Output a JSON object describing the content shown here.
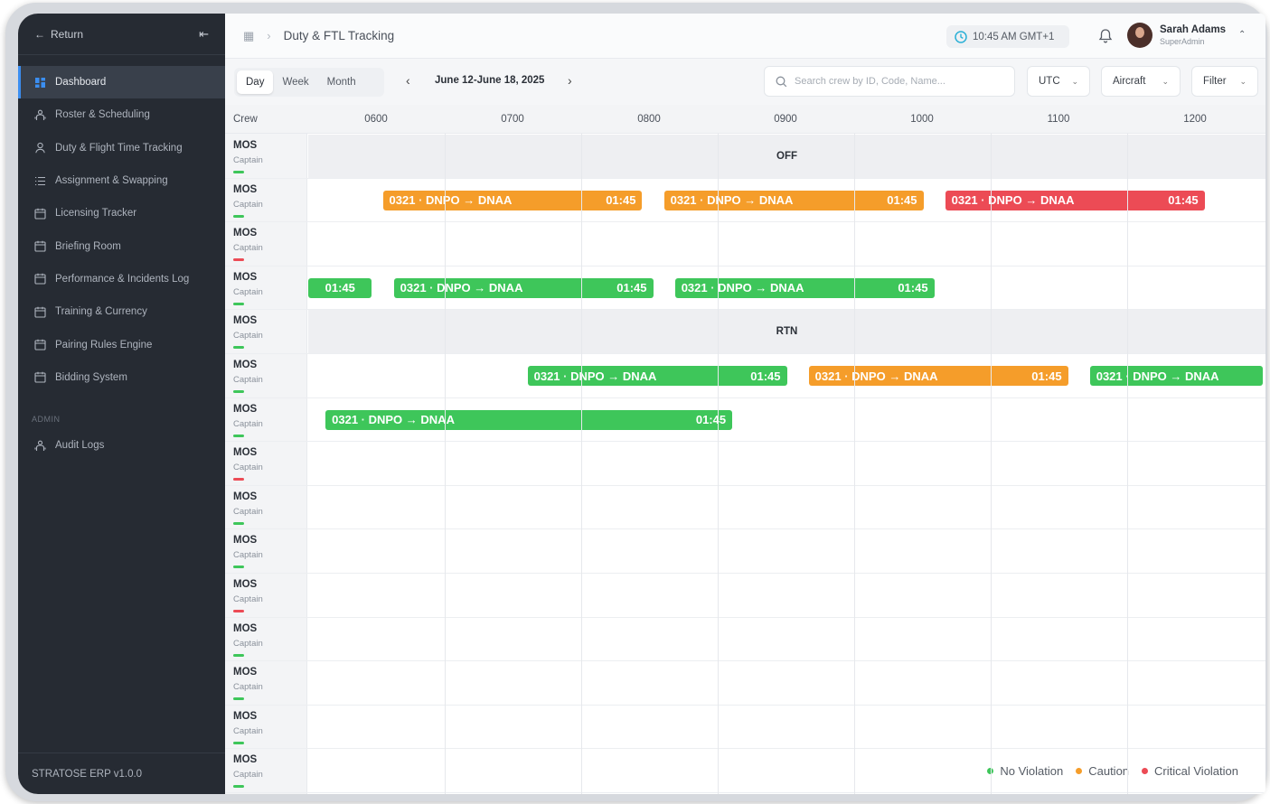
{
  "sidebar": {
    "return_label": "Return",
    "collapse_icon": "collapse-icon",
    "items": [
      {
        "label": "Dashboard",
        "icon": "grid-icon",
        "active": true
      },
      {
        "label": "Roster & Scheduling",
        "icon": "people-icon",
        "active": false
      },
      {
        "label": "Duty & Flight Time Tracking",
        "icon": "user-icon",
        "active": false
      },
      {
        "label": "Assignment & Swapping",
        "icon": "list-icon",
        "active": false
      },
      {
        "label": "Licensing Tracker",
        "icon": "calendar-icon",
        "active": false
      },
      {
        "label": "Briefing Room",
        "icon": "calendar-icon",
        "active": false
      },
      {
        "label": "Performance & Incidents Log",
        "icon": "calendar-icon",
        "active": false
      },
      {
        "label": "Training & Currency",
        "icon": "calendar-icon",
        "active": false
      },
      {
        "label": "Pairing Rules Engine",
        "icon": "calendar-icon",
        "active": false
      },
      {
        "label": "Bidding System",
        "icon": "calendar-icon",
        "active": false
      }
    ],
    "section_admin": "ADMIN",
    "admin_items": [
      {
        "label": "Audit Logs",
        "icon": "people-icon"
      }
    ],
    "footer": "STRATOSE ERP v1.0.0"
  },
  "header": {
    "title": "Duty & FTL Tracking",
    "time": "10:45 AM GMT+1",
    "user_name": "Sarah Adams",
    "user_role": "SuperAdmin"
  },
  "toolbar": {
    "views": [
      "Day",
      "Week",
      "Month"
    ],
    "active_view": "Day",
    "range": "June 12-June 18, 2025",
    "search_placeholder": "Search crew by ID, Code, Name...",
    "timezone": "UTC",
    "aircraft": "Aircraft",
    "filter": "Filter"
  },
  "grid": {
    "crew_header": "Crew",
    "hours": [
      "0600",
      "0700",
      "0800",
      "0900",
      "1000",
      "1100",
      "1200"
    ],
    "rows": [
      {
        "name": "MOS",
        "role": "Captain",
        "status": "green",
        "band": "OFF",
        "bars": []
      },
      {
        "name": "MOS",
        "role": "Captain",
        "status": "green",
        "band": "",
        "bars": [
          {
            "start": 6.05,
            "end": 7.95,
            "color": "orange",
            "flight": "0321",
            "from": "DNPO",
            "to": "DNAA",
            "duration": "01:45"
          },
          {
            "start": 8.11,
            "end": 10.01,
            "color": "orange",
            "flight": "0321",
            "from": "DNPO",
            "to": "DNAA",
            "duration": "01:45"
          },
          {
            "start": 10.17,
            "end": 12.07,
            "color": "red",
            "flight": "0321",
            "from": "DNPO",
            "to": "DNAA",
            "duration": "01:45"
          }
        ]
      },
      {
        "name": "MOS",
        "role": "Captain",
        "status": "red",
        "band": "",
        "bars": []
      },
      {
        "name": "MOS",
        "role": "Captain",
        "status": "green",
        "band": "",
        "bars": [
          {
            "start": 5.5,
            "end": 5.97,
            "color": "green",
            "flight": "",
            "from": "",
            "to": "",
            "duration": "01:45"
          },
          {
            "start": 6.13,
            "end": 8.03,
            "color": "green",
            "flight": "0321",
            "from": "DNPO",
            "to": "DNAA",
            "duration": "01:45"
          },
          {
            "start": 8.19,
            "end": 10.09,
            "color": "green",
            "flight": "0321",
            "from": "DNPO",
            "to": "DNAA",
            "duration": "01:45"
          }
        ]
      },
      {
        "name": "MOS",
        "role": "Captain",
        "status": "green",
        "band": "RTN",
        "bars": []
      },
      {
        "name": "MOS",
        "role": "Captain",
        "status": "green",
        "band": "",
        "bars": [
          {
            "start": 7.11,
            "end": 9.01,
            "color": "green",
            "flight": "0321",
            "from": "DNPO",
            "to": "DNAA",
            "duration": "01:45"
          },
          {
            "start": 9.17,
            "end": 11.07,
            "color": "orange",
            "flight": "0321",
            "from": "DNPO",
            "to": "DNAA",
            "duration": "01:45"
          },
          {
            "start": 11.23,
            "end": 12.5,
            "color": "green",
            "flight": "0321",
            "from": "DNPO",
            "to": "DNAA",
            "duration": ""
          }
        ]
      },
      {
        "name": "MOS",
        "role": "Captain",
        "status": "green",
        "band": "",
        "bars": [
          {
            "start": 5.63,
            "end": 8.61,
            "color": "green",
            "flight": "0321",
            "from": "DNPO",
            "to": "DNAA",
            "duration": "01:45"
          }
        ]
      },
      {
        "name": "MOS",
        "role": "Captain",
        "status": "red",
        "band": "",
        "bars": []
      },
      {
        "name": "MOS",
        "role": "Captain",
        "status": "green",
        "band": "",
        "bars": []
      },
      {
        "name": "MOS",
        "role": "Captain",
        "status": "green",
        "band": "",
        "bars": []
      },
      {
        "name": "MOS",
        "role": "Captain",
        "status": "red",
        "band": "",
        "bars": []
      },
      {
        "name": "MOS",
        "role": "Captain",
        "status": "green",
        "band": "",
        "bars": []
      },
      {
        "name": "MOS",
        "role": "Captain",
        "status": "green",
        "band": "",
        "bars": []
      },
      {
        "name": "MOS",
        "role": "Captain",
        "status": "green",
        "band": "",
        "bars": []
      },
      {
        "name": "MOS",
        "role": "Captain",
        "status": "green",
        "band": "",
        "bars": []
      }
    ]
  },
  "legend": [
    {
      "label": "No Violation",
      "color": "#3ec65a"
    },
    {
      "label": "Caution",
      "color": "#f59d2a"
    },
    {
      "label": "Critical Violation",
      "color": "#ec4b55"
    }
  ],
  "colors": {
    "accent": "#3b8ef0",
    "green": "#3ec65a",
    "orange": "#f59d2a",
    "red": "#ec4b55"
  }
}
